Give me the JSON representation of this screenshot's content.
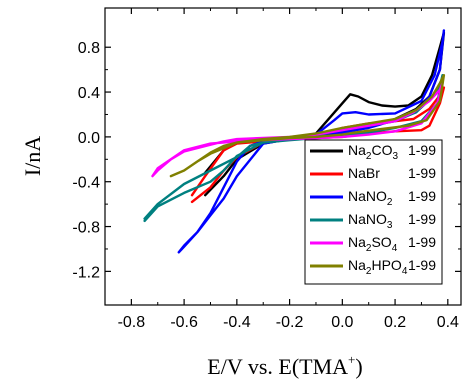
{
  "chart_data": {
    "type": "line",
    "xlabel": "E/V  vs. E(TMA",
    "xlabel_sup": "+",
    "xlabel_close": ")",
    "ylabel": "I/nA",
    "xlim": [
      -0.9,
      0.45
    ],
    "ylim": [
      -1.5,
      1.15
    ],
    "x_ticks": [
      {
        "v": -0.8,
        "label": "-0.8"
      },
      {
        "v": -0.6,
        "label": "-0.6"
      },
      {
        "v": -0.4,
        "label": "-0.4"
      },
      {
        "v": -0.2,
        "label": "-0.2"
      },
      {
        "v": 0.0,
        "label": "0.0"
      },
      {
        "v": 0.2,
        "label": "0.2"
      },
      {
        "v": 0.4,
        "label": "0.4"
      }
    ],
    "y_ticks": [
      {
        "v": 0.8,
        "label": "0.8"
      },
      {
        "v": 0.4,
        "label": "0.4"
      },
      {
        "v": 0.0,
        "label": "0.0"
      },
      {
        "v": -0.4,
        "label": "-0.4"
      },
      {
        "v": -0.8,
        "label": "-0.8"
      },
      {
        "v": -1.2,
        "label": "-1.2"
      }
    ],
    "grid": false,
    "legend_position": "right",
    "series": [
      {
        "name": "Na2CO3",
        "name_parts": [
          "Na",
          "2",
          "CO",
          "3",
          ""
        ],
        "tag": "1-99",
        "color": "#000000",
        "x": [
          -0.52,
          -0.45,
          -0.4,
          -0.3,
          -0.2,
          -0.1,
          0.0,
          0.03,
          0.06,
          0.1,
          0.15,
          0.2,
          0.25,
          0.3,
          0.34,
          0.37,
          0.385,
          0.37,
          0.33,
          0.28,
          0.2,
          0.1,
          0.0,
          -0.1,
          -0.2,
          -0.3,
          -0.4,
          -0.45,
          -0.52
        ],
        "y": [
          -0.52,
          -0.35,
          -0.2,
          -0.06,
          -0.02,
          0.03,
          0.3,
          0.38,
          0.36,
          0.31,
          0.28,
          0.27,
          0.28,
          0.36,
          0.55,
          0.8,
          0.93,
          0.6,
          0.36,
          0.25,
          0.16,
          0.09,
          0.04,
          0.0,
          -0.02,
          -0.03,
          -0.05,
          -0.12,
          -0.32
        ]
      },
      {
        "name": "NaBr",
        "name_parts": [
          "NaBr",
          "",
          "",
          "",
          ""
        ],
        "tag": "1-99",
        "color": "#ff0000",
        "x": [
          -0.57,
          -0.5,
          -0.45,
          -0.4,
          -0.3,
          -0.2,
          -0.1,
          0.0,
          0.1,
          0.2,
          0.27,
          0.33,
          0.37,
          0.385,
          0.37,
          0.33,
          0.3,
          0.2,
          0.1,
          0.0,
          -0.1,
          -0.2,
          -0.3,
          -0.4,
          -0.45,
          -0.52,
          -0.57
        ],
        "y": [
          -0.58,
          -0.45,
          -0.3,
          -0.18,
          -0.05,
          -0.02,
          0.0,
          0.08,
          0.12,
          0.14,
          0.16,
          0.25,
          0.37,
          0.44,
          0.3,
          0.1,
          0.06,
          0.05,
          0.03,
          0.0,
          -0.01,
          -0.02,
          -0.04,
          -0.06,
          -0.12,
          -0.35,
          -0.52
        ]
      },
      {
        "name": "NaNO2",
        "name_parts": [
          "NaNO",
          "2",
          "",
          "",
          ""
        ],
        "tag": "1-99",
        "color": "#0000ff",
        "x": [
          -0.62,
          -0.6,
          -0.55,
          -0.5,
          -0.45,
          -0.4,
          -0.3,
          -0.2,
          -0.1,
          -0.03,
          0.0,
          0.05,
          0.1,
          0.2,
          0.3,
          0.35,
          0.38,
          0.385,
          0.37,
          0.33,
          0.28,
          0.2,
          0.1,
          0.0,
          -0.1,
          -0.2,
          -0.3,
          -0.35,
          -0.4,
          -0.45,
          -0.5,
          -0.55,
          -0.6,
          -0.62
        ],
        "y": [
          -1.03,
          -0.98,
          -0.85,
          -0.7,
          -0.55,
          -0.35,
          -0.06,
          -0.02,
          0.02,
          0.15,
          0.21,
          0.22,
          0.2,
          0.21,
          0.32,
          0.55,
          0.85,
          0.95,
          0.6,
          0.36,
          0.22,
          0.15,
          0.08,
          0.04,
          0.01,
          -0.02,
          -0.04,
          -0.08,
          -0.22,
          -0.45,
          -0.68,
          -0.85,
          -0.97,
          -1.03
        ]
      },
      {
        "name": "NaNO3",
        "name_parts": [
          "NaNO",
          "3",
          "",
          "",
          ""
        ],
        "tag": "1-99",
        "color": "#008080",
        "x": [
          -0.75,
          -0.7,
          -0.6,
          -0.5,
          -0.45,
          -0.4,
          -0.3,
          -0.2,
          -0.1,
          0.0,
          0.1,
          0.2,
          0.28,
          0.33,
          0.37,
          0.38,
          0.36,
          0.3,
          0.2,
          0.1,
          0.0,
          -0.1,
          -0.2,
          -0.3,
          -0.35,
          -0.4,
          -0.5,
          -0.6,
          -0.7,
          -0.75
        ],
        "y": [
          -0.75,
          -0.62,
          -0.5,
          -0.4,
          -0.3,
          -0.17,
          -0.05,
          -0.01,
          0.01,
          0.07,
          0.1,
          0.14,
          0.22,
          0.33,
          0.45,
          0.55,
          0.3,
          0.14,
          0.08,
          0.04,
          0.01,
          -0.01,
          -0.03,
          -0.05,
          -0.08,
          -0.18,
          -0.3,
          -0.42,
          -0.6,
          -0.73
        ]
      },
      {
        "name": "Na2SO4",
        "name_parts": [
          "Na",
          "2",
          "SO",
          "4",
          ""
        ],
        "tag": "1-99",
        "color": "#ff00ff",
        "x": [
          -0.72,
          -0.7,
          -0.65,
          -0.6,
          -0.5,
          -0.45,
          -0.4,
          -0.3,
          -0.2,
          -0.1,
          0.0,
          0.1,
          0.2,
          0.27,
          0.33,
          0.37,
          0.38,
          0.36,
          0.3,
          0.2,
          0.1,
          0.0,
          -0.1,
          -0.2,
          -0.3,
          -0.4,
          -0.5,
          -0.6,
          -0.65,
          -0.7,
          -0.72
        ],
        "y": [
          -0.35,
          -0.28,
          -0.2,
          -0.13,
          -0.07,
          -0.04,
          -0.02,
          -0.01,
          0.0,
          0.02,
          0.06,
          0.1,
          0.14,
          0.22,
          0.32,
          0.42,
          0.48,
          0.3,
          0.12,
          0.05,
          0.02,
          0.0,
          -0.01,
          -0.02,
          -0.03,
          -0.04,
          -0.06,
          -0.12,
          -0.2,
          -0.3,
          -0.35
        ]
      },
      {
        "name": "Na2HPO4",
        "name_parts": [
          "Na",
          "2",
          "HPO",
          "4",
          ""
        ],
        "tag": "1-99",
        "color": "#808000",
        "x": [
          -0.65,
          -0.6,
          -0.55,
          -0.5,
          -0.45,
          -0.4,
          -0.3,
          -0.2,
          -0.1,
          0.0,
          0.1,
          0.2,
          0.28,
          0.34,
          0.37,
          0.385,
          0.37,
          0.32,
          0.25,
          0.15,
          0.05,
          0.0,
          -0.1,
          -0.2,
          -0.3,
          -0.4,
          -0.45,
          -0.5,
          -0.55,
          -0.6,
          -0.65
        ],
        "y": [
          -0.35,
          -0.3,
          -0.22,
          -0.15,
          -0.1,
          -0.05,
          -0.02,
          0.0,
          0.03,
          0.08,
          0.12,
          0.16,
          0.24,
          0.36,
          0.48,
          0.55,
          0.32,
          0.15,
          0.1,
          0.07,
          0.04,
          0.02,
          0.0,
          -0.01,
          -0.03,
          -0.05,
          -0.08,
          -0.14,
          -0.22,
          -0.3,
          -0.35
        ]
      }
    ]
  }
}
